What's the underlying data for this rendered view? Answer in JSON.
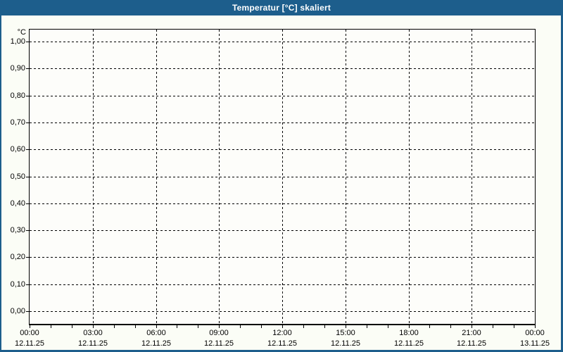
{
  "window": {
    "title": "Temperatur [°C] skaliert"
  },
  "colors": {
    "title_bar": "#1d5e8c",
    "border": "#1d5e8c",
    "title_text": "#ffffff",
    "background": "#fbfdf6",
    "plot_background": "#fdfdfa",
    "grid": "#000000",
    "axis": "#000000",
    "label_text": "#000000"
  },
  "chart_data": {
    "type": "line",
    "title": "Temperatur [°C] skaliert",
    "series": [],
    "x_axis": {
      "range_hours": [
        0,
        24
      ],
      "major_step_hours": 3,
      "minor_step_hours": 1,
      "major_ticks": [
        {
          "time": "00:00",
          "date": "12.11.25"
        },
        {
          "time": "03:00",
          "date": "12.11.25"
        },
        {
          "time": "06:00",
          "date": "12.11.25"
        },
        {
          "time": "09:00",
          "date": "12.11.25"
        },
        {
          "time": "12:00",
          "date": "12.11.25"
        },
        {
          "time": "15:00",
          "date": "12.11.25"
        },
        {
          "time": "18:00",
          "date": "12.11.25"
        },
        {
          "time": "21:00",
          "date": "12.11.25"
        },
        {
          "time": "00:00",
          "date": "13.11.25"
        }
      ]
    },
    "y_axis": {
      "unit": "°C",
      "min": 0.0,
      "max": 1.0,
      "step": 0.1,
      "tick_labels": [
        "1,00",
        "0,90",
        "0,80",
        "0,70",
        "0,60",
        "0,50",
        "0,40",
        "0,30",
        "0,20",
        "0,10",
        "0,00"
      ]
    },
    "grid": {
      "style": "dashed",
      "horizontal": true,
      "vertical": true
    }
  }
}
